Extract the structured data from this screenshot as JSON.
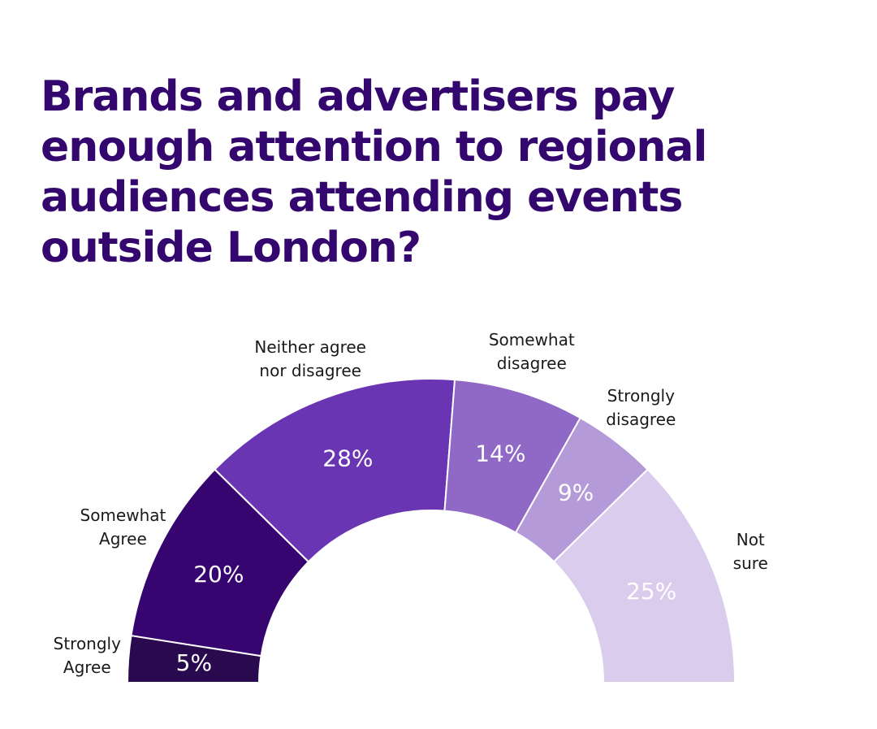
{
  "chart_data": {
    "type": "half-donut",
    "title": "Brands and advertisers pay enough attention to regional audiences attending events outside London?",
    "categories": [
      "Strongly\nAgree",
      "Somewhat\nAgree",
      "Neither agree\nnor disagree",
      "Somewhat\ndisagree",
      "Strongly\ndisagree",
      "Not\nsure"
    ],
    "values": [
      5,
      20,
      28,
      14,
      9,
      25
    ],
    "value_labels": [
      "5%",
      "20%",
      "28%",
      "14%",
      "9%",
      "25%"
    ],
    "colors": [
      "#2a0a4f",
      "#360570",
      "#6a35b3",
      "#9068c6",
      "#b59ad9",
      "#d9ccec"
    ]
  }
}
